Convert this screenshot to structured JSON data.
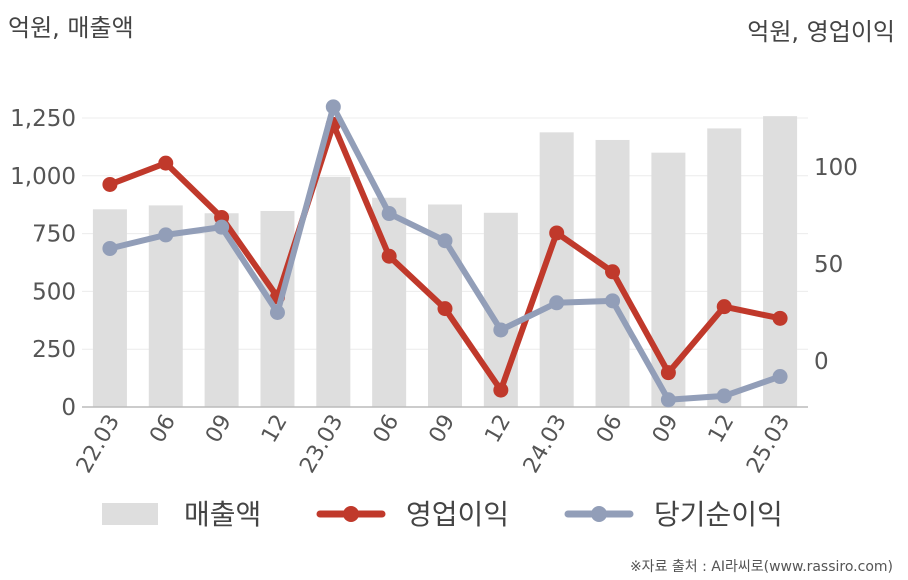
{
  "chart_data": {
    "type": "bar+line",
    "left_unit": "억원, 매출액",
    "right_unit": "억원, 영업이익",
    "categories": [
      "22.03",
      "06",
      "09",
      "12",
      "23.03",
      "06",
      "09",
      "12",
      "24.03",
      "06",
      "09",
      "12",
      "25.03"
    ],
    "left_axis": {
      "ylim": [
        0,
        1250
      ],
      "ticks": [
        "0",
        "250",
        "500",
        "750",
        "1,000",
        "1,250"
      ],
      "tick_values": [
        0,
        250,
        500,
        750,
        1000,
        1250
      ]
    },
    "right_axis": {
      "ylim": [
        -25,
        130
      ],
      "ticks": [
        "0",
        "50",
        "100"
      ],
      "tick_values": [
        0,
        50,
        100
      ]
    },
    "series": [
      {
        "name": "매출액",
        "kind": "bar",
        "axis": "left",
        "color": "#dedede",
        "values": [
          855,
          872,
          838,
          848,
          995,
          905,
          876,
          840,
          1188,
          1155,
          1100,
          1205,
          1258
        ]
      },
      {
        "name": "영업이익",
        "kind": "line",
        "axis": "right",
        "color": "#c0392b",
        "values": [
          91,
          102,
          74,
          33,
          122,
          54,
          27,
          -15,
          66,
          46,
          -6,
          28,
          22
        ]
      },
      {
        "name": "당기순이익",
        "kind": "line",
        "axis": "right",
        "color": "#929eb8",
        "values": [
          58,
          65,
          69,
          25,
          131,
          76,
          62,
          16,
          30,
          31,
          -20,
          -18,
          -8
        ]
      }
    ],
    "grid": true,
    "legend_position": "bottom"
  },
  "source_text": "※자료 출처 : AI라씨로(www.rassiro.com)"
}
